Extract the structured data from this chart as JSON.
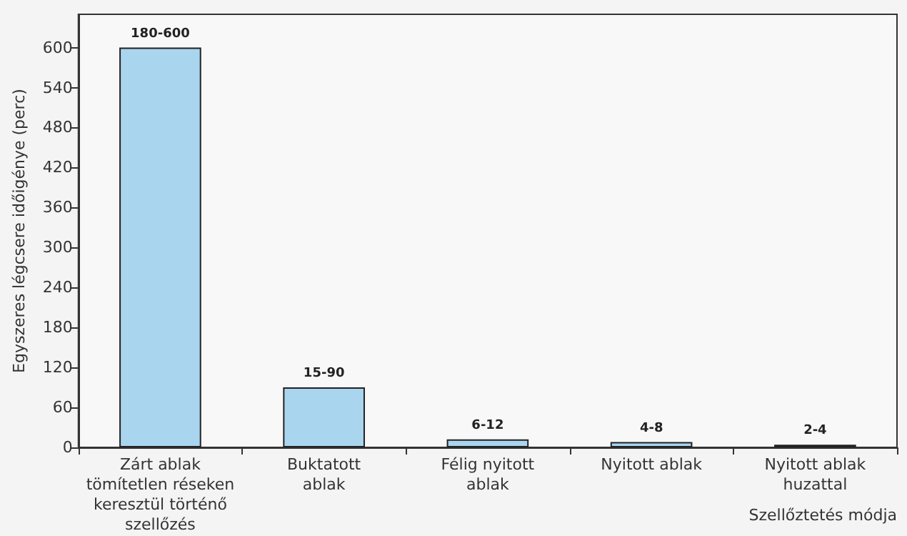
{
  "chart_data": {
    "type": "bar",
    "categories": [
      "Zárt ablak\ntömítetlen réseken\nkeresztül történő\nszellőzés",
      "Buktatott\nablak",
      "Félig nyitott\nablak",
      "Nyitott ablak",
      "Nyitott ablak\nhuzattal"
    ],
    "values": [
      600,
      90,
      12,
      8,
      4
    ],
    "color": "#a9d5ef",
    "value_labels": [
      "180-600",
      "15-90",
      "6-12",
      "4-8",
      "2-4"
    ],
    "ylabel": "Egyszeres légcsere időigénye (perc)",
    "xlabel": "Szellőztetés módja",
    "ylim": [
      0,
      650
    ],
    "yticks": [
      0,
      60,
      120,
      180,
      240,
      300,
      360,
      420,
      480,
      540,
      600
    ],
    "grid": false
  }
}
